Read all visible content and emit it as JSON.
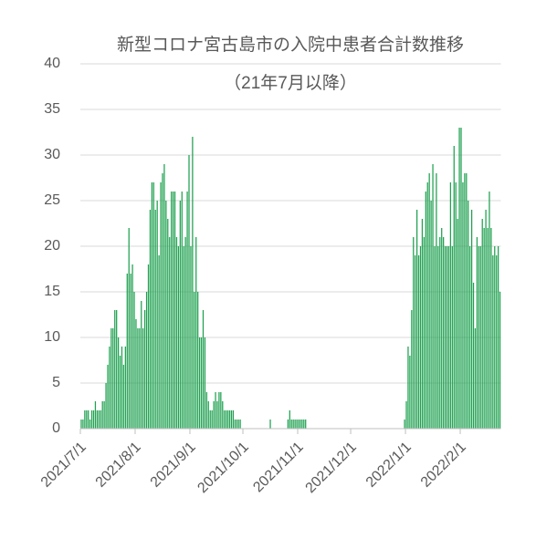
{
  "chart_data": {
    "type": "bar",
    "title": "新型コロナ宮古島市の入院中患者合計数推移",
    "subtitle": "（21年7月以降）",
    "color": "#1fa150",
    "grid": true,
    "ylim": [
      0,
      40
    ],
    "yticks": [
      0,
      5,
      10,
      15,
      20,
      25,
      30,
      35,
      40
    ],
    "xticks": [
      "2021/7/1",
      "2021/8/1",
      "2021/9/1",
      "2021/10/1",
      "2021/11/1",
      "2021/12/1",
      "2022/1/1",
      "2022/2/1"
    ],
    "x": [
      "2021/7/1",
      "2021/7/2",
      "2021/7/3",
      "2021/7/4",
      "2021/7/5",
      "2021/7/6",
      "2021/7/7",
      "2021/7/8",
      "2021/7/9",
      "2021/7/10",
      "2021/7/11",
      "2021/7/12",
      "2021/7/13",
      "2021/7/14",
      "2021/7/15",
      "2021/7/16",
      "2021/7/17",
      "2021/7/18",
      "2021/7/19",
      "2021/7/20",
      "2021/7/21",
      "2021/7/22",
      "2021/7/23",
      "2021/7/24",
      "2021/7/25",
      "2021/7/26",
      "2021/7/27",
      "2021/7/28",
      "2021/7/29",
      "2021/7/30",
      "2021/7/31",
      "2021/8/1",
      "2021/8/2",
      "2021/8/3",
      "2021/8/4",
      "2021/8/5",
      "2021/8/6",
      "2021/8/7",
      "2021/8/8",
      "2021/8/9",
      "2021/8/10",
      "2021/8/11",
      "2021/8/12",
      "2021/8/13",
      "2021/8/14",
      "2021/8/15",
      "2021/8/16",
      "2021/8/17",
      "2021/8/18",
      "2021/8/19",
      "2021/8/20",
      "2021/8/21",
      "2021/8/22",
      "2021/8/23",
      "2021/8/24",
      "2021/8/25",
      "2021/8/26",
      "2021/8/27",
      "2021/8/28",
      "2021/8/29",
      "2021/8/30",
      "2021/8/31",
      "2021/9/1",
      "2021/9/2",
      "2021/9/3",
      "2021/9/4",
      "2021/9/5",
      "2021/9/6",
      "2021/9/7",
      "2021/9/8",
      "2021/9/9",
      "2021/9/10",
      "2021/9/11",
      "2021/9/12",
      "2021/9/13",
      "2021/9/14",
      "2021/9/15",
      "2021/9/16",
      "2021/9/17",
      "2021/9/18",
      "2021/9/19",
      "2021/9/20",
      "2021/9/21",
      "2021/9/22",
      "2021/9/23",
      "2021/9/24",
      "2021/9/25",
      "2021/9/26",
      "2021/9/27",
      "2021/9/28",
      "2021/9/29",
      "2021/9/30",
      "2021/10/1",
      "2021/10/2",
      "2021/10/3",
      "2021/10/4",
      "2021/10/5",
      "2021/10/6",
      "2021/10/7",
      "2021/10/8",
      "2021/10/9",
      "2021/10/10",
      "2021/10/11",
      "2021/10/12",
      "2021/10/13",
      "2021/10/14",
      "2021/10/15",
      "2021/10/16",
      "2021/10/17",
      "2021/10/18",
      "2021/10/19",
      "2021/10/20",
      "2021/10/21",
      "2021/10/22",
      "2021/10/23",
      "2021/10/24",
      "2021/10/25",
      "2021/10/26",
      "2021/10/27",
      "2021/10/28",
      "2021/10/29",
      "2021/10/30",
      "2021/10/31",
      "2021/11/1",
      "2021/11/2",
      "2021/11/3",
      "2021/11/4",
      "2021/11/5",
      "2021/11/6",
      "2021/11/7",
      "2021/11/8",
      "2021/11/9",
      "2021/11/10",
      "2021/11/11",
      "2021/11/12",
      "2021/11/13",
      "2021/11/14",
      "2021/11/15",
      "2021/11/16",
      "2021/11/17",
      "2021/11/18",
      "2021/11/19",
      "2021/11/20",
      "2021/11/21",
      "2021/11/22",
      "2021/11/23",
      "2021/11/24",
      "2021/11/25",
      "2021/11/26",
      "2021/11/27",
      "2021/11/28",
      "2021/11/29",
      "2021/11/30",
      "2021/12/1",
      "2021/12/2",
      "2021/12/3",
      "2021/12/4",
      "2021/12/5",
      "2021/12/6",
      "2021/12/7",
      "2021/12/8",
      "2021/12/9",
      "2021/12/10",
      "2021/12/11",
      "2021/12/12",
      "2021/12/13",
      "2021/12/14",
      "2021/12/15",
      "2021/12/16",
      "2021/12/17",
      "2021/12/18",
      "2021/12/19",
      "2021/12/20",
      "2021/12/21",
      "2021/12/22",
      "2021/12/23",
      "2021/12/24",
      "2021/12/25",
      "2021/12/26",
      "2021/12/27",
      "2021/12/28",
      "2021/12/29",
      "2021/12/30",
      "2021/12/31",
      "2022/1/1",
      "2022/1/2",
      "2022/1/3",
      "2022/1/4",
      "2022/1/5",
      "2022/1/6",
      "2022/1/7",
      "2022/1/8",
      "2022/1/9",
      "2022/1/10",
      "2022/1/11",
      "2022/1/12",
      "2022/1/13",
      "2022/1/14",
      "2022/1/15",
      "2022/1/16",
      "2022/1/17",
      "2022/1/18",
      "2022/1/19",
      "2022/1/20",
      "2022/1/21",
      "2022/1/22",
      "2022/1/23",
      "2022/1/24",
      "2022/1/25",
      "2022/1/26",
      "2022/1/27",
      "2022/1/28",
      "2022/1/29",
      "2022/1/30",
      "2022/1/31",
      "2022/2/1",
      "2022/2/2",
      "2022/2/3",
      "2022/2/4",
      "2022/2/5",
      "2022/2/6",
      "2022/2/7",
      "2022/2/8",
      "2022/2/9",
      "2022/2/10",
      "2022/2/11",
      "2022/2/12",
      "2022/2/13",
      "2022/2/14",
      "2022/2/15",
      "2022/2/16",
      "2022/2/17",
      "2022/2/18",
      "2022/2/19",
      "2022/2/20",
      "2022/2/21",
      "2022/2/22",
      "2022/2/23"
    ],
    "values": [
      1,
      1,
      2,
      2,
      2,
      1,
      2,
      2,
      3,
      2,
      2,
      2,
      3,
      3,
      5,
      7,
      9,
      11,
      11,
      13,
      13,
      10,
      8,
      9,
      7,
      9,
      17,
      22,
      17,
      18,
      15,
      12,
      11,
      11,
      14,
      11,
      13,
      15,
      18,
      24,
      27,
      27,
      24,
      25,
      19,
      27,
      28,
      29,
      25,
      23,
      21,
      26,
      26,
      26,
      21,
      20,
      25,
      26,
      20,
      21,
      26,
      30,
      20,
      32,
      15,
      21,
      15,
      10,
      10,
      13,
      10,
      4,
      3,
      2,
      2,
      3,
      4,
      3,
      4,
      4,
      3,
      2,
      2,
      2,
      2,
      2,
      2,
      1,
      1,
      1,
      1,
      0,
      0,
      0,
      0,
      0,
      0,
      0,
      0,
      0,
      0,
      0,
      0,
      0,
      0,
      0,
      0,
      1,
      0,
      0,
      0,
      0,
      0,
      0,
      0,
      0,
      0,
      1,
      2,
      1,
      1,
      1,
      1,
      1,
      1,
      1,
      1,
      1,
      0,
      0,
      0,
      0,
      0,
      0,
      0,
      0,
      0,
      0,
      0,
      0,
      0,
      0,
      0,
      0,
      0,
      0,
      0,
      0,
      0,
      0,
      0,
      0,
      0,
      0,
      0,
      0,
      0,
      0,
      0,
      0,
      0,
      0,
      0,
      0,
      0,
      0,
      0,
      0,
      0,
      0,
      0,
      0,
      0,
      0,
      0,
      0,
      0,
      0,
      0,
      0,
      0,
      0,
      0,
      1,
      3,
      9,
      8,
      13,
      21,
      19,
      24,
      19,
      20,
      23,
      21,
      26,
      27,
      28,
      25,
      29,
      20,
      28,
      20,
      21,
      22,
      21,
      20,
      20,
      20,
      27,
      20,
      31,
      27,
      23,
      33,
      33,
      27,
      28,
      28,
      25,
      20,
      24,
      16,
      11,
      21,
      20,
      20,
      23,
      22,
      24,
      22,
      26,
      22,
      19,
      20,
      19,
      20,
      15
    ]
  }
}
